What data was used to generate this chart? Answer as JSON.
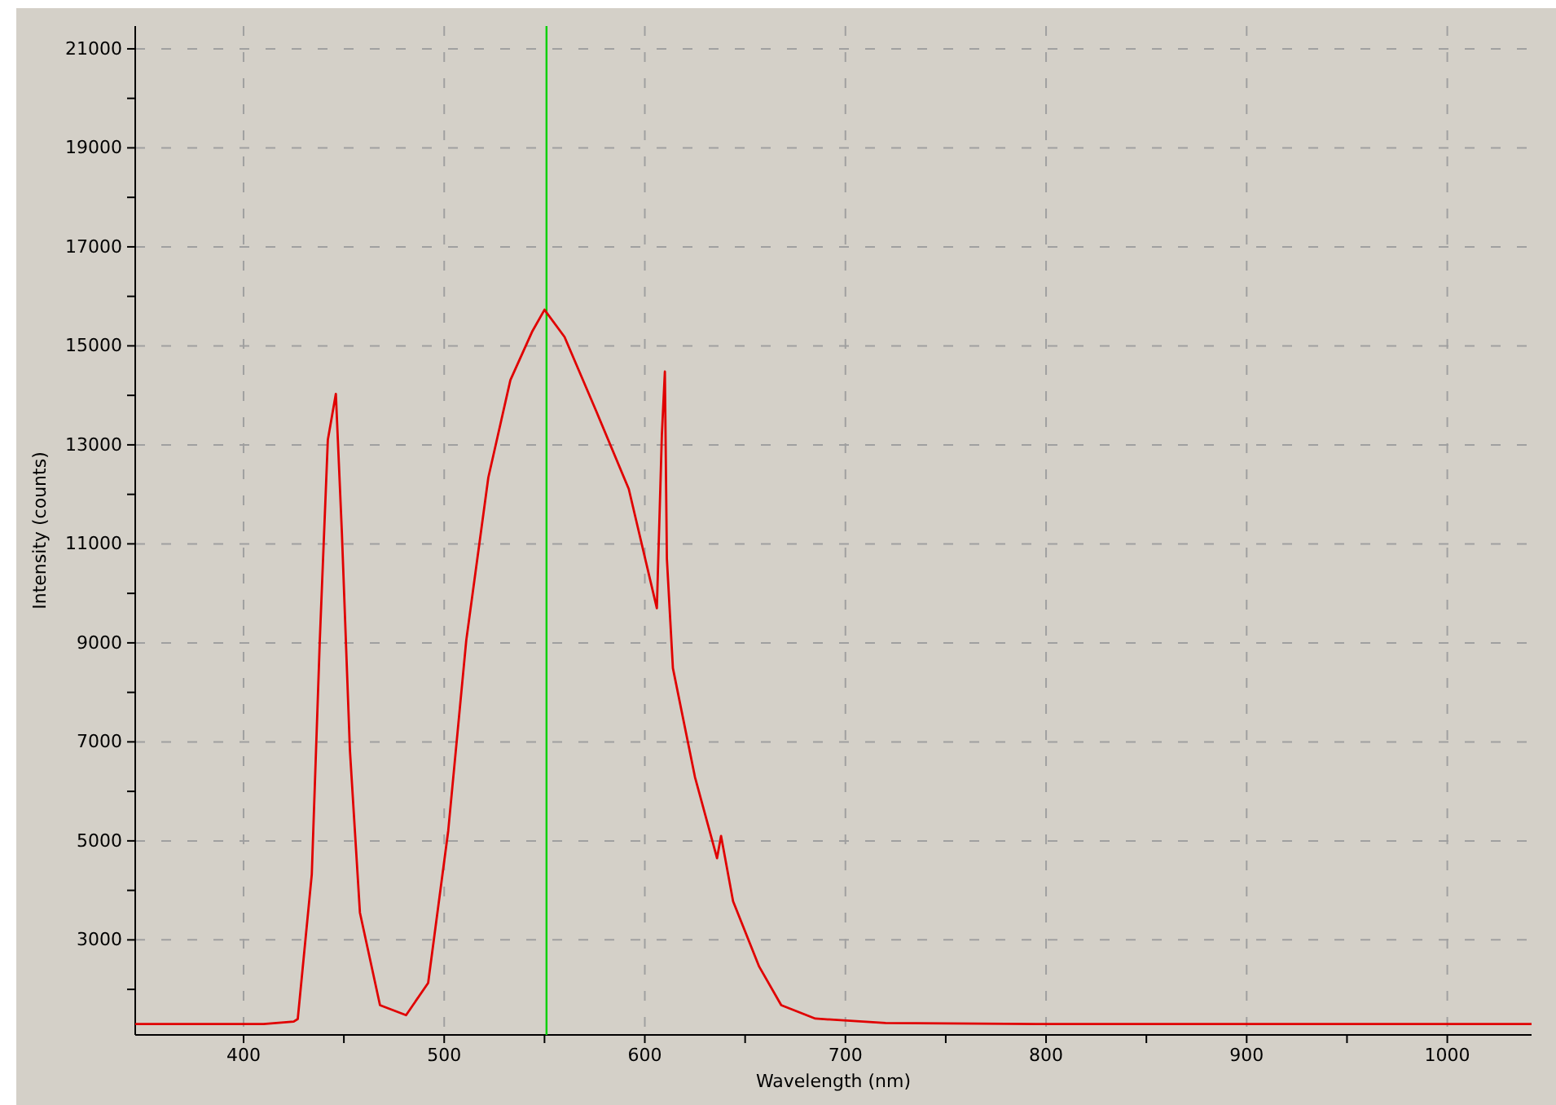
{
  "chart_data": {
    "type": "line",
    "xlabel": "Wavelength (nm)",
    "ylabel": "Intensity (counts)",
    "x": [
      346,
      380,
      410,
      425,
      427,
      434,
      438,
      442,
      446,
      449,
      453,
      458,
      468,
      481,
      492,
      502,
      511,
      522,
      533,
      544,
      550,
      560,
      576,
      592,
      606,
      608.5,
      610,
      611,
      614,
      625,
      636,
      638,
      644,
      657,
      668,
      685,
      720,
      800,
      900,
      1000,
      1042
    ],
    "series": [
      {
        "color": "#e00000",
        "values": [
          1300,
          1300,
          1300,
          1350,
          1400,
          4320,
          9050,
          13100,
          14030,
          11230,
          6840,
          3550,
          1680,
          1480,
          2130,
          5200,
          9050,
          12340,
          14310,
          15300,
          15730,
          15180,
          13660,
          12110,
          9700,
          13200,
          14480,
          10700,
          8490,
          6290,
          4650,
          5100,
          3780,
          2460,
          1680,
          1410,
          1320,
          1300,
          1300,
          1300,
          1300
        ]
      }
    ],
    "xlim": [
      346,
      1042
    ],
    "xticks": [
      400,
      {
        "value": 450,
        "label": null
      },
      500,
      {
        "value": 550,
        "label": null
      },
      600,
      {
        "value": 650,
        "label": null
      },
      700,
      {
        "value": 750,
        "label": null
      },
      800,
      {
        "value": 850,
        "label": null
      },
      900,
      {
        "value": 950,
        "label": null
      },
      1000
    ],
    "ylim": [
      1080,
      21460
    ],
    "yticks": [
      {
        "value": 2000,
        "label": null
      },
      3000,
      {
        "value": 4000,
        "label": null
      },
      5000,
      {
        "value": 6000,
        "label": null
      },
      7000,
      {
        "value": 8000,
        "label": null
      },
      9000,
      {
        "value": 10000,
        "label": null
      },
      11000,
      {
        "value": 12000,
        "label": null
      },
      13000,
      {
        "value": 14000,
        "label": null
      },
      15000,
      {
        "value": 16000,
        "label": null
      },
      17000,
      {
        "value": 18000,
        "label": null
      },
      19000,
      {
        "value": 20000,
        "label": null
      },
      21000
    ],
    "grid": true,
    "ref_lines": [
      {
        "axis": "x",
        "value": 551,
        "color": "#00d000"
      }
    ]
  }
}
